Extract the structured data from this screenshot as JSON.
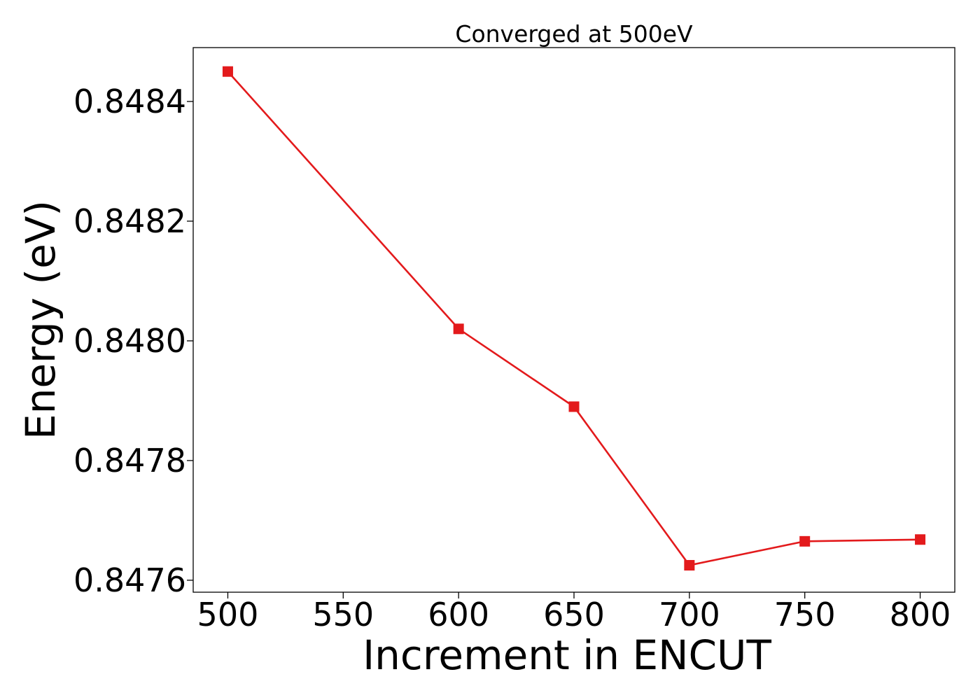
{
  "chart_data": {
    "type": "line",
    "title": "Converged at 500eV",
    "xlabel": "Increment in ENCUT",
    "ylabel": "Energy (eV)",
    "x": [
      500,
      600,
      650,
      700,
      750,
      800
    ],
    "series": [
      {
        "values": [
          0.84845,
          0.84802,
          0.84789,
          0.847625,
          0.847665,
          0.847668
        ],
        "color": "#e31a1c",
        "marker": "square"
      }
    ],
    "xticks": [
      500,
      550,
      600,
      650,
      700,
      750,
      800
    ],
    "yticks": [
      0.8476,
      0.8478,
      0.848,
      0.8482,
      0.8484
    ],
    "ytick_labels": [
      "0.8476",
      "0.8478",
      "0.8480",
      "0.8482",
      "0.8484"
    ],
    "xlim": [
      485,
      815
    ],
    "ylim": [
      0.84758,
      0.84849
    ],
    "grid": false,
    "legend": "none"
  }
}
